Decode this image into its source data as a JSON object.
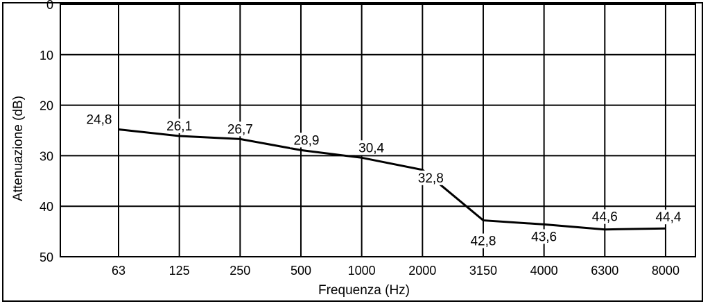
{
  "chart_data": {
    "type": "line",
    "title": "",
    "xlabel": "Frequenza (Hz)",
    "ylabel": "Attenuazione (dB)",
    "categories": [
      "63",
      "125",
      "250",
      "500",
      "1000",
      "2000",
      "3150",
      "4000",
      "6300",
      "8000"
    ],
    "series": [
      {
        "values": [
          24.8,
          26.1,
          26.7,
          28.9,
          30.4,
          32.8,
          42.8,
          43.6,
          44.6,
          44.4
        ],
        "labels": [
          "24,8",
          "26,1",
          "26,7",
          "28,9",
          "30,4",
          "32,8",
          "42,8",
          "43,6",
          "44,6",
          "44,4"
        ]
      }
    ],
    "yticks": [
      "0",
      "10",
      "20",
      "30",
      "40",
      "50"
    ],
    "ylim": [
      0,
      50
    ],
    "y_inverted": true,
    "grid": true,
    "legend": "none",
    "colors": {
      "line": "#000000",
      "grid": "#000000",
      "background": "#ffffff"
    }
  }
}
